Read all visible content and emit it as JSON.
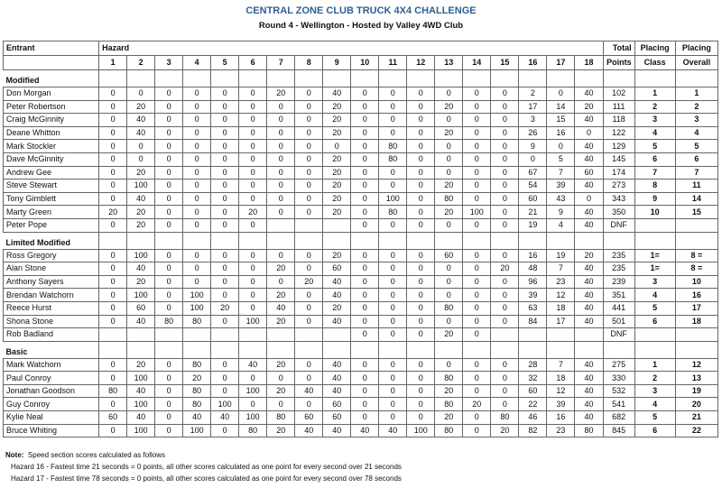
{
  "title": "CENTRAL ZONE  CLUB TRUCK 4X4 CHALLENGE",
  "subtitle": "Round 4 - Wellington - Hosted by Valley 4WD Club",
  "headers": {
    "entrant": "Entrant",
    "hazard": "Hazard",
    "hazard_numbers": [
      "1",
      "2",
      "3",
      "4",
      "5",
      "6",
      "7",
      "8",
      "9",
      "10",
      "11",
      "12",
      "13",
      "14",
      "15",
      "16",
      "17",
      "18"
    ],
    "total_top": "Total",
    "total_bottom": "Points",
    "class_top": "Placing",
    "class_bottom": "Class",
    "overall_top": "Placing",
    "overall_bottom": "Overall"
  },
  "sections": [
    {
      "label": "Modified",
      "rows": [
        {
          "name": "Don Morgan",
          "h": [
            "0",
            "0",
            "0",
            "0",
            "0",
            "0",
            "20",
            "0",
            "40",
            "0",
            "0",
            "0",
            "0",
            "0",
            "0",
            "2",
            "0",
            "40"
          ],
          "total": "102",
          "class": "1",
          "overall": "1"
        },
        {
          "name": "Peter Robertson",
          "h": [
            "0",
            "20",
            "0",
            "0",
            "0",
            "0",
            "0",
            "0",
            "20",
            "0",
            "0",
            "0",
            "20",
            "0",
            "0",
            "17",
            "14",
            "20"
          ],
          "total": "111",
          "class": "2",
          "overall": "2"
        },
        {
          "name": "Craig McGinnity",
          "h": [
            "0",
            "40",
            "0",
            "0",
            "0",
            "0",
            "0",
            "0",
            "20",
            "0",
            "0",
            "0",
            "0",
            "0",
            "0",
            "3",
            "15",
            "40"
          ],
          "total": "118",
          "class": "3",
          "overall": "3"
        },
        {
          "name": "Deane Whitton",
          "h": [
            "0",
            "40",
            "0",
            "0",
            "0",
            "0",
            "0",
            "0",
            "20",
            "0",
            "0",
            "0",
            "20",
            "0",
            "0",
            "26",
            "16",
            "0"
          ],
          "total": "122",
          "class": "4",
          "overall": "4"
        },
        {
          "name": "Mark Stockler",
          "h": [
            "0",
            "0",
            "0",
            "0",
            "0",
            "0",
            "0",
            "0",
            "0",
            "0",
            "80",
            "0",
            "0",
            "0",
            "0",
            "9",
            "0",
            "40"
          ],
          "total": "129",
          "class": "5",
          "overall": "5"
        },
        {
          "name": "Dave McGinnity",
          "h": [
            "0",
            "0",
            "0",
            "0",
            "0",
            "0",
            "0",
            "0",
            "20",
            "0",
            "80",
            "0",
            "0",
            "0",
            "0",
            "0",
            "5",
            "40"
          ],
          "total": "145",
          "class": "6",
          "overall": "6"
        },
        {
          "name": "Andrew Gee",
          "h": [
            "0",
            "20",
            "0",
            "0",
            "0",
            "0",
            "0",
            "0",
            "20",
            "0",
            "0",
            "0",
            "0",
            "0",
            "0",
            "67",
            "7",
            "60"
          ],
          "total": "174",
          "class": "7",
          "overall": "7"
        },
        {
          "name": "Steve Stewart",
          "h": [
            "0",
            "100",
            "0",
            "0",
            "0",
            "0",
            "0",
            "0",
            "20",
            "0",
            "0",
            "0",
            "20",
            "0",
            "0",
            "54",
            "39",
            "40"
          ],
          "total": "273",
          "class": "8",
          "overall": "11"
        },
        {
          "name": "Tony Gimblett",
          "h": [
            "0",
            "40",
            "0",
            "0",
            "0",
            "0",
            "0",
            "0",
            "20",
            "0",
            "100",
            "0",
            "80",
            "0",
            "0",
            "60",
            "43",
            "0"
          ],
          "total": "343",
          "class": "9",
          "overall": "14"
        },
        {
          "name": "Marty Green",
          "h": [
            "20",
            "20",
            "0",
            "0",
            "0",
            "20",
            "0",
            "0",
            "20",
            "0",
            "80",
            "0",
            "20",
            "100",
            "0",
            "21",
            "9",
            "40"
          ],
          "total": "350",
          "class": "10",
          "overall": "15"
        },
        {
          "name": "Peter Pope",
          "h": [
            "0",
            "20",
            "0",
            "0",
            "0",
            "0",
            "",
            "",
            "",
            "0",
            "0",
            "0",
            "0",
            "0",
            "0",
            "19",
            "4",
            "40"
          ],
          "total": "DNF",
          "class": "",
          "overall": ""
        }
      ]
    },
    {
      "label": "Limited Modified",
      "rows": [
        {
          "name": "Ross Gregory",
          "h": [
            "0",
            "100",
            "0",
            "0",
            "0",
            "0",
            "0",
            "0",
            "20",
            "0",
            "0",
            "0",
            "60",
            "0",
            "0",
            "16",
            "19",
            "20"
          ],
          "total": "235",
          "class": "1=",
          "overall": "8 ="
        },
        {
          "name": "Alan Stone",
          "h": [
            "0",
            "40",
            "0",
            "0",
            "0",
            "0",
            "20",
            "0",
            "60",
            "0",
            "0",
            "0",
            "0",
            "0",
            "20",
            "48",
            "7",
            "40"
          ],
          "total": "235",
          "class": "1=",
          "overall": "8 ="
        },
        {
          "name": "Anthony Sayers",
          "h": [
            "0",
            "20",
            "0",
            "0",
            "0",
            "0",
            "0",
            "20",
            "40",
            "0",
            "0",
            "0",
            "0",
            "0",
            "0",
            "96",
            "23",
            "40"
          ],
          "total": "239",
          "class": "3",
          "overall": "10"
        },
        {
          "name": "Brendan Watchorn",
          "h": [
            "0",
            "100",
            "0",
            "100",
            "0",
            "0",
            "20",
            "0",
            "40",
            "0",
            "0",
            "0",
            "0",
            "0",
            "0",
            "39",
            "12",
            "40"
          ],
          "total": "351",
          "class": "4",
          "overall": "16"
        },
        {
          "name": "Reece Hurst",
          "h": [
            "0",
            "60",
            "0",
            "100",
            "20",
            "0",
            "40",
            "0",
            "20",
            "0",
            "0",
            "0",
            "80",
            "0",
            "0",
            "63",
            "18",
            "40"
          ],
          "total": "441",
          "class": "5",
          "overall": "17"
        },
        {
          "name": "Shona Stone",
          "h": [
            "0",
            "40",
            "80",
            "80",
            "0",
            "100",
            "20",
            "0",
            "40",
            "0",
            "0",
            "0",
            "0",
            "0",
            "0",
            "84",
            "17",
            "40"
          ],
          "total": "501",
          "class": "6",
          "overall": "18"
        },
        {
          "name": "Rob Badland",
          "h": [
            "",
            "",
            "",
            "",
            "",
            "",
            "",
            "",
            "",
            "0",
            "0",
            "0",
            "20",
            "0",
            "",
            "",
            "",
            ""
          ],
          "total": "DNF",
          "class": "",
          "overall": ""
        }
      ]
    },
    {
      "label": "Basic",
      "rows": [
        {
          "name": "Mark Watchorn",
          "h": [
            "0",
            "20",
            "0",
            "80",
            "0",
            "40",
            "20",
            "0",
            "40",
            "0",
            "0",
            "0",
            "0",
            "0",
            "0",
            "28",
            "7",
            "40"
          ],
          "total": "275",
          "class": "1",
          "overall": "12"
        },
        {
          "name": "Paul Conroy",
          "h": [
            "0",
            "100",
            "0",
            "20",
            "0",
            "0",
            "0",
            "0",
            "40",
            "0",
            "0",
            "0",
            "80",
            "0",
            "0",
            "32",
            "18",
            "40"
          ],
          "total": "330",
          "class": "2",
          "overall": "13"
        },
        {
          "name": "Jonathan Goodson",
          "h": [
            "80",
            "40",
            "0",
            "80",
            "0",
            "100",
            "20",
            "40",
            "40",
            "0",
            "0",
            "0",
            "20",
            "0",
            "0",
            "60",
            "12",
            "40"
          ],
          "total": "532",
          "class": "3",
          "overall": "19"
        },
        {
          "name": "Guy Conroy",
          "h": [
            "0",
            "100",
            "0",
            "80",
            "100",
            "0",
            "0",
            "0",
            "60",
            "0",
            "0",
            "0",
            "80",
            "20",
            "0",
            "22",
            "39",
            "40"
          ],
          "total": "541",
          "class": "4",
          "overall": "20"
        },
        {
          "name": "Kylie Neal",
          "h": [
            "60",
            "40",
            "0",
            "40",
            "40",
            "100",
            "80",
            "60",
            "60",
            "0",
            "0",
            "0",
            "20",
            "0",
            "80",
            "46",
            "16",
            "40"
          ],
          "total": "682",
          "class": "5",
          "overall": "21"
        },
        {
          "name": "Bruce Whiting",
          "h": [
            "0",
            "100",
            "0",
            "100",
            "0",
            "80",
            "20",
            "40",
            "40",
            "40",
            "40",
            "100",
            "80",
            "0",
            "20",
            "82",
            "23",
            "80"
          ],
          "total": "845",
          "class": "6",
          "overall": "22"
        }
      ]
    }
  ],
  "notes": {
    "label": "Note:",
    "line1": "Speed section scores calculated  as follows",
    "line2": "Hazard 16 - Fastest time 21 seconds = 0 points, all other scores calculated as one point for every second over 21 seconds",
    "line3": "Hazard 17 - Fastest time 78 seconds = 0 points, all other scores calculated as one point for every second over 78 seconds"
  },
  "colors": {
    "title": "#2f5f8f"
  }
}
